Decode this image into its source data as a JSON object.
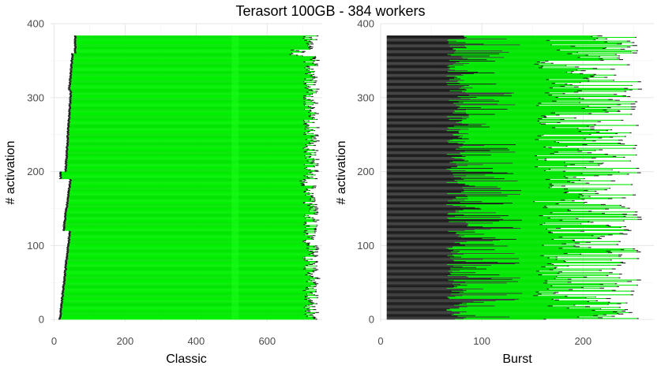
{
  "title": "Terasort 100GB - 384 workers",
  "chart_data": [
    {
      "type": "bar",
      "orientation": "horizontal-stacked",
      "xlabel": "Classic",
      "ylabel": "# activation",
      "xlim": [
        -10,
        755
      ],
      "ylim": [
        -3,
        400
      ],
      "x_ticks": [
        0,
        200,
        400,
        600
      ],
      "y_ticks": [
        0,
        100,
        200,
        300,
        400
      ],
      "workers": 384,
      "segments_per_worker": [
        "dark",
        "green",
        "dark"
      ],
      "approx_phase_ends": {
        "start_dark": [
          10,
          60
        ],
        "green_end": [
          700,
          745
        ],
        "end_dark": [
          705,
          752
        ]
      },
      "colors": {
        "dark": "#1e1e1e",
        "green_a": "#00e600",
        "green_b": "#00f000",
        "band": "#19ff19"
      },
      "grid": true,
      "legend": "none"
    },
    {
      "type": "bar",
      "orientation": "horizontal-stacked",
      "xlabel": "Burst",
      "ylabel": "# activation",
      "xlim": [
        0,
        270
      ],
      "ylim": [
        -3,
        400
      ],
      "x_ticks": [
        0,
        100,
        200
      ],
      "y_ticks": [
        0,
        100,
        200,
        300,
        400
      ],
      "workers": 384,
      "segments_per_worker": [
        "dark",
        "green",
        "dark"
      ],
      "approx_phase_ends": {
        "start_dark": [
          6,
          6
        ],
        "dark_end": [
          65,
          140
        ],
        "green_end": [
          150,
          260
        ],
        "end_dark": [
          155,
          262
        ]
      },
      "colors": {
        "dark": "#1e1e1e",
        "dark_alt": "#4a4a4a",
        "green": "#00e600"
      },
      "grid": true,
      "legend": "none"
    }
  ]
}
